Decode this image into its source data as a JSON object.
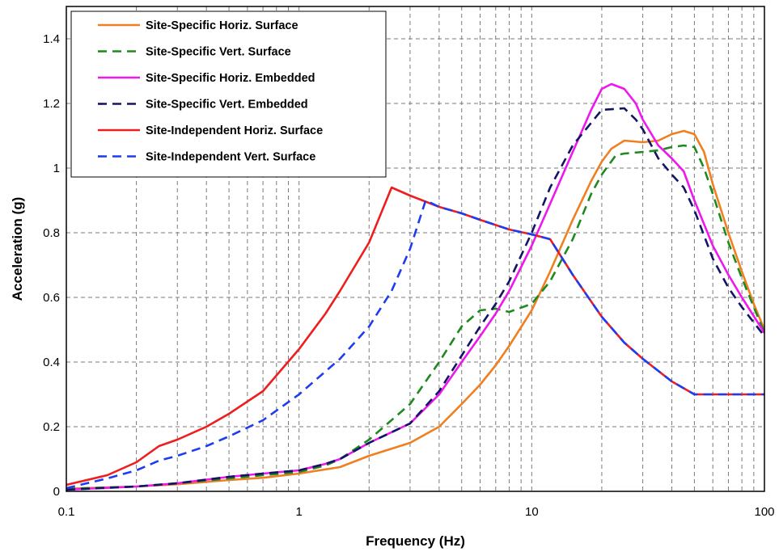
{
  "chart_data": {
    "type": "line",
    "x_scale": "log",
    "xlim": [
      0.1,
      100
    ],
    "ylim": [
      0,
      1.5
    ],
    "xlabel": "Frequency (Hz)",
    "ylabel": "Acceleration (g)",
    "x_ticks": [
      {
        "value": 0.1,
        "label": "0.1"
      },
      {
        "value": 1,
        "label": "1"
      },
      {
        "value": 10,
        "label": "10"
      },
      {
        "value": 100,
        "label": "100"
      }
    ],
    "y_ticks": [
      {
        "value": 0,
        "label": "0"
      },
      {
        "value": 0.2,
        "label": "0.2"
      },
      {
        "value": 0.4,
        "label": "0.4"
      },
      {
        "value": 0.6,
        "label": "0.6"
      },
      {
        "value": 0.8,
        "label": "0.8"
      },
      {
        "value": 1.0,
        "label": "1"
      },
      {
        "value": 1.2,
        "label": "1.2"
      },
      {
        "value": 1.4,
        "label": "1.4"
      }
    ],
    "grid": true,
    "legend_position": "top-left",
    "series": [
      {
        "name": "Site-Specific Horiz. Surface",
        "color": "#f07f20",
        "dash": "solid",
        "points": [
          [
            0.1,
            0.008
          ],
          [
            0.2,
            0.015
          ],
          [
            0.3,
            0.022
          ],
          [
            0.5,
            0.035
          ],
          [
            0.7,
            0.042
          ],
          [
            1,
            0.055
          ],
          [
            1.5,
            0.075
          ],
          [
            2,
            0.11
          ],
          [
            3,
            0.15
          ],
          [
            4,
            0.2
          ],
          [
            5,
            0.27
          ],
          [
            6,
            0.33
          ],
          [
            7,
            0.39
          ],
          [
            8,
            0.45
          ],
          [
            10,
            0.56
          ],
          [
            12,
            0.68
          ],
          [
            15,
            0.84
          ],
          [
            18,
            0.96
          ],
          [
            20,
            1.02
          ],
          [
            22,
            1.06
          ],
          [
            25,
            1.085
          ],
          [
            30,
            1.08
          ],
          [
            35,
            1.085
          ],
          [
            40,
            1.105
          ],
          [
            45,
            1.115
          ],
          [
            50,
            1.105
          ],
          [
            55,
            1.05
          ],
          [
            60,
            0.95
          ],
          [
            70,
            0.8
          ],
          [
            80,
            0.68
          ],
          [
            90,
            0.58
          ],
          [
            100,
            0.5
          ]
        ]
      },
      {
        "name": "Site-Specific Vert. Surface",
        "color": "#1e8a1e",
        "dash": "dashed",
        "points": [
          [
            0.1,
            0.008
          ],
          [
            0.2,
            0.015
          ],
          [
            0.3,
            0.025
          ],
          [
            0.5,
            0.04
          ],
          [
            0.7,
            0.05
          ],
          [
            1,
            0.06
          ],
          [
            1.3,
            0.08
          ],
          [
            1.5,
            0.1
          ],
          [
            2,
            0.16
          ],
          [
            3,
            0.27
          ],
          [
            4,
            0.4
          ],
          [
            5,
            0.51
          ],
          [
            6,
            0.56
          ],
          [
            7,
            0.565
          ],
          [
            8,
            0.555
          ],
          [
            10,
            0.58
          ],
          [
            12,
            0.65
          ],
          [
            15,
            0.78
          ],
          [
            18,
            0.92
          ],
          [
            20,
            0.98
          ],
          [
            23,
            1.04
          ],
          [
            25,
            1.045
          ],
          [
            30,
            1.05
          ],
          [
            35,
            1.055
          ],
          [
            40,
            1.065
          ],
          [
            45,
            1.07
          ],
          [
            50,
            1.065
          ],
          [
            55,
            1.0
          ],
          [
            60,
            0.92
          ],
          [
            70,
            0.77
          ],
          [
            80,
            0.66
          ],
          [
            90,
            0.57
          ],
          [
            100,
            0.49
          ]
        ]
      },
      {
        "name": "Site-Specific Horiz. Embedded",
        "color": "#ee18ee",
        "dash": "solid",
        "points": [
          [
            0.1,
            0.005
          ],
          [
            0.2,
            0.015
          ],
          [
            0.3,
            0.025
          ],
          [
            0.5,
            0.045
          ],
          [
            0.7,
            0.055
          ],
          [
            1,
            0.065
          ],
          [
            1.3,
            0.085
          ],
          [
            1.5,
            0.1
          ],
          [
            2,
            0.15
          ],
          [
            3,
            0.21
          ],
          [
            4,
            0.3
          ],
          [
            5,
            0.4
          ],
          [
            6,
            0.48
          ],
          [
            7,
            0.55
          ],
          [
            8,
            0.62
          ],
          [
            10,
            0.76
          ],
          [
            12,
            0.89
          ],
          [
            15,
            1.05
          ],
          [
            18,
            1.18
          ],
          [
            20,
            1.245
          ],
          [
            22,
            1.26
          ],
          [
            25,
            1.245
          ],
          [
            28,
            1.2
          ],
          [
            30,
            1.15
          ],
          [
            35,
            1.07
          ],
          [
            40,
            1.03
          ],
          [
            45,
            0.99
          ],
          [
            50,
            0.9
          ],
          [
            60,
            0.76
          ],
          [
            70,
            0.67
          ],
          [
            80,
            0.6
          ],
          [
            100,
            0.49
          ]
        ]
      },
      {
        "name": "Site-Specific Vert. Embedded",
        "color": "#141464",
        "dash": "dashed",
        "points": [
          [
            0.1,
            0.005
          ],
          [
            0.2,
            0.015
          ],
          [
            0.3,
            0.025
          ],
          [
            0.5,
            0.045
          ],
          [
            0.7,
            0.055
          ],
          [
            1,
            0.065
          ],
          [
            1.3,
            0.085
          ],
          [
            1.5,
            0.1
          ],
          [
            2,
            0.15
          ],
          [
            3,
            0.21
          ],
          [
            4,
            0.31
          ],
          [
            5,
            0.42
          ],
          [
            6,
            0.51
          ],
          [
            7,
            0.58
          ],
          [
            8,
            0.65
          ],
          [
            10,
            0.8
          ],
          [
            12,
            0.94
          ],
          [
            15,
            1.07
          ],
          [
            18,
            1.14
          ],
          [
            20,
            1.18
          ],
          [
            25,
            1.185
          ],
          [
            28,
            1.15
          ],
          [
            30,
            1.12
          ],
          [
            35,
            1.03
          ],
          [
            40,
            0.98
          ],
          [
            45,
            0.94
          ],
          [
            50,
            0.87
          ],
          [
            60,
            0.72
          ],
          [
            70,
            0.63
          ],
          [
            80,
            0.57
          ],
          [
            100,
            0.48
          ]
        ]
      },
      {
        "name": "Site-Independent Horiz. Surface",
        "color": "#ee1e1e",
        "dash": "solid",
        "points": [
          [
            0.1,
            0.02
          ],
          [
            0.15,
            0.05
          ],
          [
            0.2,
            0.09
          ],
          [
            0.25,
            0.14
          ],
          [
            0.3,
            0.16
          ],
          [
            0.4,
            0.2
          ],
          [
            0.5,
            0.24
          ],
          [
            0.7,
            0.31
          ],
          [
            1,
            0.44
          ],
          [
            1.3,
            0.55
          ],
          [
            1.5,
            0.62
          ],
          [
            2,
            0.77
          ],
          [
            2.5,
            0.94
          ],
          [
            3,
            0.915
          ],
          [
            4,
            0.88
          ],
          [
            5,
            0.86
          ],
          [
            6,
            0.84
          ],
          [
            8,
            0.81
          ],
          [
            10,
            0.795
          ],
          [
            12,
            0.78
          ],
          [
            15,
            0.67
          ],
          [
            20,
            0.54
          ],
          [
            25,
            0.46
          ],
          [
            30,
            0.41
          ],
          [
            40,
            0.34
          ],
          [
            50,
            0.3
          ],
          [
            100,
            0.3
          ]
        ]
      },
      {
        "name": "Site-Independent Vert. Surface",
        "color": "#1e3cf0",
        "dash": "dashed",
        "points": [
          [
            0.1,
            0.01
          ],
          [
            0.15,
            0.04
          ],
          [
            0.2,
            0.065
          ],
          [
            0.25,
            0.095
          ],
          [
            0.3,
            0.11
          ],
          [
            0.4,
            0.14
          ],
          [
            0.5,
            0.17
          ],
          [
            0.7,
            0.22
          ],
          [
            1,
            0.3
          ],
          [
            1.5,
            0.41
          ],
          [
            2,
            0.51
          ],
          [
            2.5,
            0.62
          ],
          [
            3,
            0.75
          ],
          [
            3.5,
            0.9
          ],
          [
            4,
            0.88
          ],
          [
            5,
            0.86
          ],
          [
            6,
            0.84
          ],
          [
            8,
            0.81
          ],
          [
            10,
            0.795
          ],
          [
            12,
            0.78
          ],
          [
            15,
            0.67
          ],
          [
            20,
            0.54
          ],
          [
            25,
            0.46
          ],
          [
            30,
            0.41
          ],
          [
            40,
            0.34
          ],
          [
            50,
            0.3
          ],
          [
            100,
            0.3
          ]
        ]
      }
    ]
  }
}
